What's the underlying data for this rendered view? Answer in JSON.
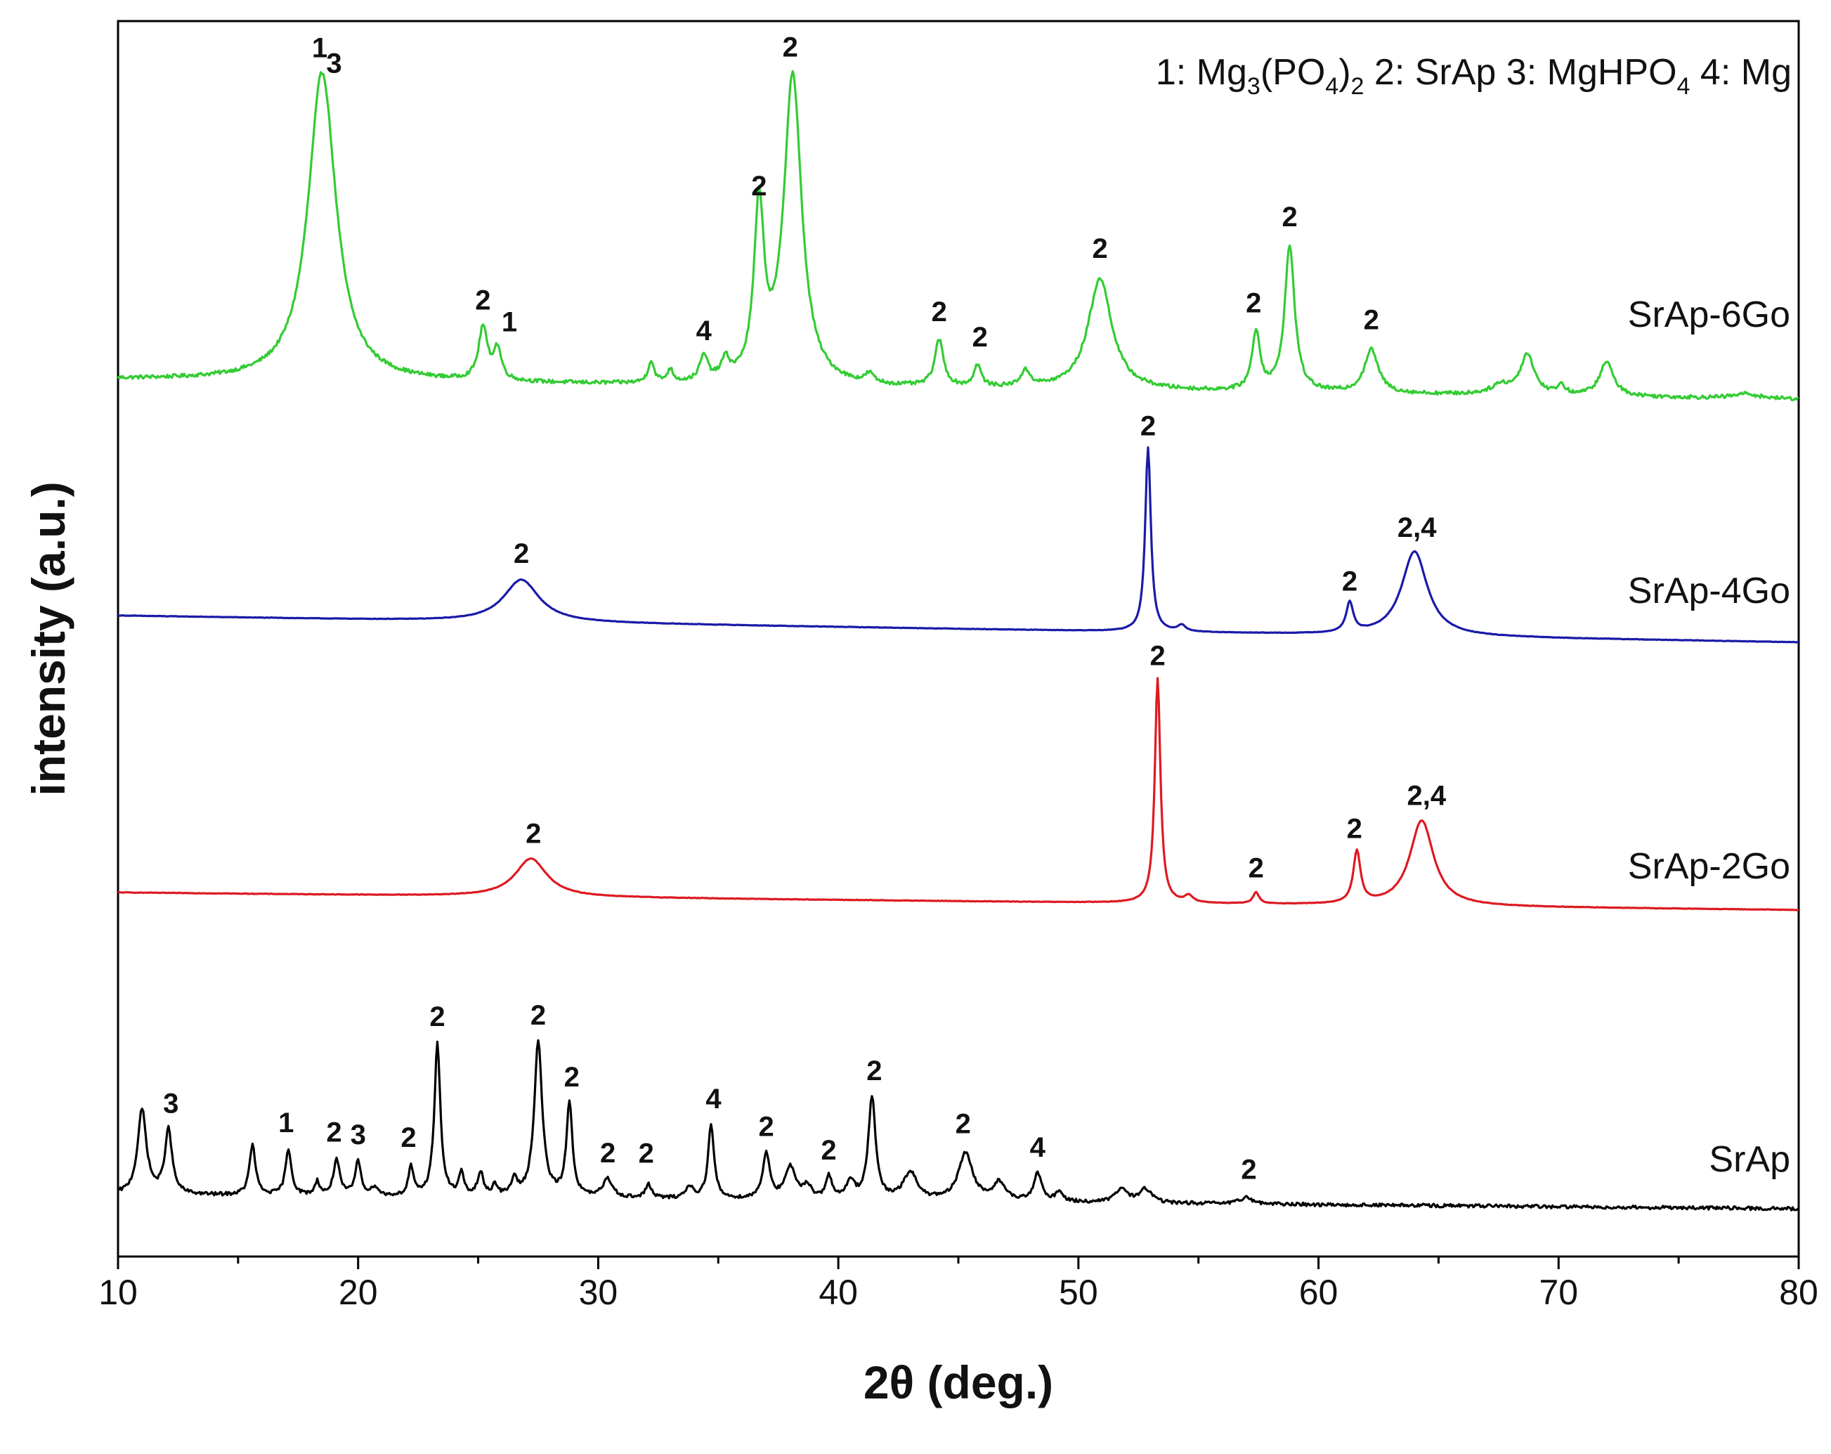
{
  "chart_data": {
    "type": "line",
    "title": "",
    "xlabel": "2θ (deg.)",
    "ylabel": "intensity (a.u.)",
    "xlim": [
      10,
      80
    ],
    "xticks": [
      10,
      20,
      30,
      40,
      50,
      60,
      70,
      80
    ],
    "legend": {
      "items": [
        {
          "key": "1",
          "name": "Mg",
          "formula": [
            "Mg",
            "3",
            "(PO",
            "4",
            ")",
            "2"
          ]
        },
        {
          "key": "2",
          "name": "SrAp"
        },
        {
          "key": "3",
          "name": "MgHPO",
          "formula": [
            "MgHPO",
            "4"
          ]
        },
        {
          "key": "4",
          "name": "Mg"
        }
      ]
    },
    "series": [
      {
        "name": "SrAp-6Go",
        "color": "#33cc33",
        "baseline": 0.0,
        "noise": 0.012,
        "peaks": [
          [
            18.5,
            1.0,
            0.7
          ],
          [
            25.2,
            0.17,
            0.22
          ],
          [
            25.8,
            0.1,
            0.2
          ],
          [
            32.2,
            0.07,
            0.15
          ],
          [
            33.0,
            0.04,
            0.15
          ],
          [
            34.4,
            0.08,
            0.2
          ],
          [
            35.3,
            0.06,
            0.2
          ],
          [
            36.7,
            0.55,
            0.25
          ],
          [
            38.1,
            1.0,
            0.45
          ],
          [
            41.3,
            0.03,
            0.2
          ],
          [
            44.2,
            0.15,
            0.22
          ],
          [
            45.8,
            0.07,
            0.18
          ],
          [
            47.8,
            0.05,
            0.25
          ],
          [
            50.9,
            0.36,
            0.6
          ],
          [
            57.4,
            0.19,
            0.2
          ],
          [
            58.8,
            0.47,
            0.25
          ],
          [
            62.2,
            0.14,
            0.35
          ],
          [
            67.6,
            0.03,
            0.5
          ],
          [
            68.7,
            0.13,
            0.35
          ],
          [
            70.1,
            0.03,
            0.2
          ],
          [
            72.0,
            0.11,
            0.35
          ],
          [
            77.8,
            0.015,
            0.6
          ]
        ],
        "labels": [
          {
            "text": "1",
            "x": 18.4,
            "y": 1.05
          },
          {
            "text": "3",
            "x": 19.0,
            "y": 1.0
          },
          {
            "text": "2",
            "x": 25.2,
            "y": 0.24
          },
          {
            "text": "1",
            "x": 26.3,
            "y": 0.17
          },
          {
            "text": "4",
            "x": 34.4,
            "y": 0.15
          },
          {
            "text": "2",
            "x": 36.7,
            "y": 0.62
          },
          {
            "text": "2",
            "x": 38.0,
            "y": 1.07
          },
          {
            "text": "2",
            "x": 44.2,
            "y": 0.22
          },
          {
            "text": "2",
            "x": 45.9,
            "y": 0.14
          },
          {
            "text": "2",
            "x": 50.9,
            "y": 0.43
          },
          {
            "text": "2",
            "x": 57.3,
            "y": 0.26
          },
          {
            "text": "2",
            "x": 58.8,
            "y": 0.54
          },
          {
            "text": "2",
            "x": 62.2,
            "y": 0.21
          }
        ]
      },
      {
        "name": "SrAp-4Go",
        "color": "#1a1aa8",
        "baseline": 0.0,
        "noise": 0.002,
        "peaks": [
          [
            26.8,
            0.2,
            0.9
          ],
          [
            52.9,
            0.87,
            0.14
          ],
          [
            54.3,
            0.03,
            0.2
          ],
          [
            61.3,
            0.14,
            0.18
          ],
          [
            64.0,
            0.4,
            0.65
          ]
        ],
        "labels": [
          {
            "text": "2",
            "x": 26.8,
            "y": 0.28
          },
          {
            "text": "2",
            "x": 52.9,
            "y": 0.93
          },
          {
            "text": "2",
            "x": 61.3,
            "y": 0.21
          },
          {
            "text": "2,4",
            "x": 64.1,
            "y": 0.47
          }
        ]
      },
      {
        "name": "SrAp-2Go",
        "color": "#dd1a22",
        "baseline": 0.0,
        "noise": 0.002,
        "peaks": [
          [
            27.2,
            0.17,
            0.8
          ],
          [
            53.3,
            1.0,
            0.14
          ],
          [
            54.6,
            0.03,
            0.2
          ],
          [
            57.4,
            0.05,
            0.15
          ],
          [
            61.6,
            0.23,
            0.18
          ],
          [
            64.3,
            0.38,
            0.6
          ]
        ],
        "labels": [
          {
            "text": "2",
            "x": 27.3,
            "y": 0.24
          },
          {
            "text": "2",
            "x": 53.3,
            "y": 1.06
          },
          {
            "text": "2",
            "x": 57.4,
            "y": 0.12
          },
          {
            "text": "2",
            "x": 61.5,
            "y": 0.3
          },
          {
            "text": "2,4",
            "x": 64.5,
            "y": 0.45
          }
        ]
      },
      {
        "name": "SrAp",
        "color": "#000000",
        "baseline": 0.0,
        "noise": 0.015,
        "peaks": [
          [
            11.0,
            0.37,
            0.22
          ],
          [
            12.1,
            0.28,
            0.18
          ],
          [
            15.6,
            0.22,
            0.15
          ],
          [
            17.1,
            0.2,
            0.15
          ],
          [
            18.3,
            0.06,
            0.12
          ],
          [
            19.1,
            0.16,
            0.15
          ],
          [
            20.0,
            0.15,
            0.15
          ],
          [
            20.7,
            0.04,
            0.15
          ],
          [
            22.2,
            0.13,
            0.12
          ],
          [
            23.3,
            0.67,
            0.15
          ],
          [
            24.3,
            0.1,
            0.12
          ],
          [
            25.1,
            0.1,
            0.15
          ],
          [
            25.7,
            0.05,
            0.12
          ],
          [
            26.5,
            0.07,
            0.15
          ],
          [
            27.5,
            0.68,
            0.2
          ],
          [
            28.8,
            0.41,
            0.15
          ],
          [
            30.4,
            0.08,
            0.25
          ],
          [
            32.1,
            0.06,
            0.15
          ],
          [
            33.8,
            0.05,
            0.2
          ],
          [
            34.7,
            0.32,
            0.15
          ],
          [
            37.0,
            0.2,
            0.18
          ],
          [
            38.0,
            0.14,
            0.25
          ],
          [
            38.7,
            0.06,
            0.2
          ],
          [
            39.6,
            0.1,
            0.15
          ],
          [
            40.5,
            0.08,
            0.2
          ],
          [
            41.4,
            0.45,
            0.18
          ],
          [
            43.0,
            0.12,
            0.35
          ],
          [
            45.3,
            0.21,
            0.35
          ],
          [
            46.7,
            0.08,
            0.3
          ],
          [
            48.3,
            0.12,
            0.2
          ],
          [
            49.2,
            0.04,
            0.2
          ],
          [
            51.8,
            0.06,
            0.3
          ],
          [
            52.8,
            0.06,
            0.3
          ],
          [
            57.0,
            0.03,
            0.3
          ]
        ],
        "labels": [
          {
            "text": "3",
            "x": 12.2,
            "y": 0.36
          },
          {
            "text": "1",
            "x": 17.0,
            "y": 0.28
          },
          {
            "text": "2",
            "x": 19.0,
            "y": 0.24
          },
          {
            "text": "3",
            "x": 20.0,
            "y": 0.23
          },
          {
            "text": "2",
            "x": 22.1,
            "y": 0.22
          },
          {
            "text": "2",
            "x": 23.3,
            "y": 0.75
          },
          {
            "text": "2",
            "x": 27.5,
            "y": 0.76
          },
          {
            "text": "2",
            "x": 28.9,
            "y": 0.49
          },
          {
            "text": "2",
            "x": 30.4,
            "y": 0.16
          },
          {
            "text": "2",
            "x": 32.0,
            "y": 0.16
          },
          {
            "text": "4",
            "x": 34.8,
            "y": 0.4
          },
          {
            "text": "2",
            "x": 37.0,
            "y": 0.28
          },
          {
            "text": "2",
            "x": 39.6,
            "y": 0.18
          },
          {
            "text": "2",
            "x": 41.5,
            "y": 0.53
          },
          {
            "text": "2",
            "x": 45.2,
            "y": 0.3
          },
          {
            "text": "4",
            "x": 48.3,
            "y": 0.2
          },
          {
            "text": "2",
            "x": 57.1,
            "y": 0.11
          }
        ]
      }
    ]
  }
}
